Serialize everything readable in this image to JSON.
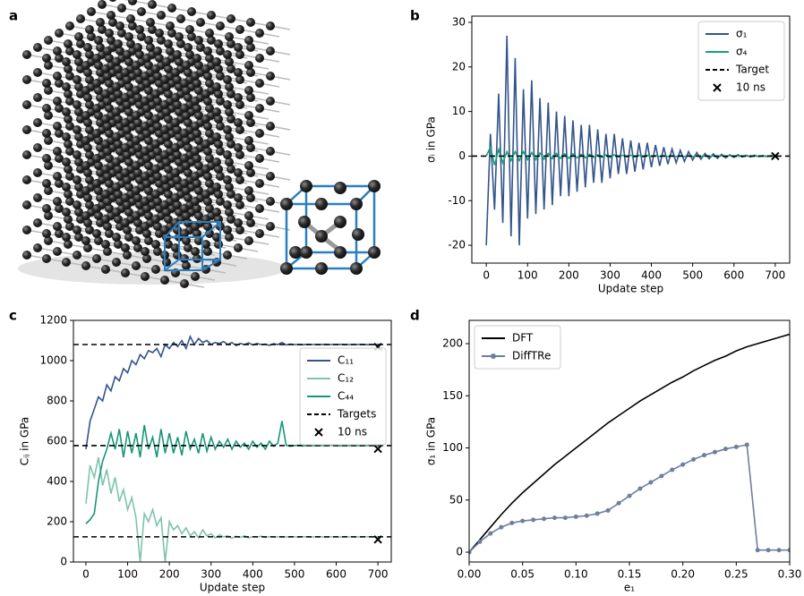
{
  "figure_a": {
    "label": "a"
  },
  "chart_data": [
    {
      "type": "line",
      "panel": "b",
      "xlabel": "Update step",
      "ylabel": "σᵢ in GPa",
      "xlim": [
        -35,
        735
      ],
      "ylim": [
        -24,
        31.4
      ],
      "xticks": [
        0,
        100,
        200,
        300,
        400,
        500,
        600,
        700
      ],
      "yticks": [
        -20,
        -10,
        0,
        10,
        20,
        30
      ],
      "legend": "upper right",
      "x": [
        0,
        10,
        20,
        30,
        40,
        50,
        60,
        70,
        80,
        90,
        100,
        110,
        120,
        130,
        140,
        150,
        160,
        170,
        180,
        190,
        200,
        210,
        220,
        230,
        240,
        250,
        260,
        270,
        280,
        290,
        300,
        310,
        320,
        330,
        340,
        350,
        360,
        370,
        380,
        390,
        400,
        410,
        420,
        430,
        440,
        450,
        460,
        470,
        480,
        490,
        500,
        510,
        520,
        530,
        540,
        550,
        560,
        570,
        580,
        590,
        600,
        610,
        620,
        630,
        640,
        650,
        660,
        670,
        680,
        690,
        700
      ],
      "series": [
        {
          "name": "σ₁",
          "color": "#34548b",
          "values": [
            -20,
            5,
            -12,
            14,
            -15,
            27,
            -18,
            22,
            -20,
            15,
            -14,
            17,
            -13,
            13,
            -12,
            12,
            -11,
            10,
            -9,
            9,
            -9,
            8,
            -8,
            7,
            -7,
            7,
            -6,
            6,
            -6,
            5,
            -5,
            5,
            -4,
            4,
            -4,
            3.5,
            -3.5,
            3,
            -3,
            3,
            -2.5,
            2.5,
            -2.2,
            2,
            -1.8,
            1.6,
            -1.5,
            1.3,
            -1.2,
            1,
            -0.9,
            0.8,
            -0.7,
            0.6,
            -0.6,
            0.5,
            -0.5,
            0.4,
            -0.4,
            0.3,
            -0.3,
            0.3,
            -0.2,
            0.2,
            -0.2,
            0.2,
            -0.1,
            0.1,
            -0.1,
            0.1,
            0
          ]
        },
        {
          "name": "σ₄",
          "color": "#1b9e7b",
          "values": [
            0,
            2,
            -2,
            1.5,
            -1.5,
            1,
            -1,
            1,
            -1,
            1,
            -0.8,
            0.8,
            -0.8,
            0.7,
            -0.7,
            0.6,
            -0.6,
            0.6,
            -0.5,
            0.5,
            -0.5,
            0.5,
            -0.4,
            0.4,
            -0.4,
            0.4,
            -0.3,
            0.3,
            -0.3,
            0.3,
            -0.3,
            0.3,
            -0.2,
            0.2,
            -0.2,
            0.2,
            -0.2,
            0.2,
            -0.2,
            0.2,
            -0.1,
            0.1,
            -0.1,
            0.1,
            -0.1,
            0.1,
            -0.1,
            0.1,
            -0.1,
            0.1,
            -0.1,
            0.1,
            -0.1,
            0.1,
            -0.1,
            0.1,
            -0.1,
            0.1,
            -0.1,
            0.1,
            0,
            0,
            0,
            0,
            0,
            0,
            0,
            0,
            0,
            0,
            0
          ]
        }
      ],
      "targets": {
        "name": "Target",
        "values": [
          0
        ]
      },
      "markers": {
        "name": "10 ns",
        "x": 700,
        "values": [
          0
        ]
      }
    },
    {
      "type": "line",
      "panel": "c",
      "xlabel": "Update step",
      "ylabel": "Cᵢⱼ in GPa",
      "xlim": [
        -30,
        732
      ],
      "ylim": [
        0,
        1200
      ],
      "xticks": [
        0,
        100,
        200,
        300,
        400,
        500,
        600,
        700
      ],
      "yticks": [
        0,
        200,
        400,
        600,
        800,
        1000,
        1200
      ],
      "legend": "center right",
      "x": [
        0,
        10,
        20,
        30,
        40,
        50,
        60,
        70,
        80,
        90,
        100,
        110,
        120,
        130,
        140,
        150,
        160,
        170,
        180,
        190,
        200,
        210,
        220,
        230,
        240,
        250,
        260,
        270,
        280,
        290,
        300,
        310,
        320,
        330,
        340,
        350,
        360,
        370,
        380,
        390,
        400,
        410,
        420,
        430,
        440,
        450,
        460,
        470,
        480,
        490,
        500,
        510,
        520,
        530,
        540,
        550,
        560,
        570,
        580,
        590,
        600,
        610,
        620,
        630,
        640,
        650,
        660,
        670,
        680,
        690,
        700
      ],
      "series": [
        {
          "name": "C₁₁",
          "color": "#34548b",
          "values": [
            560,
            700,
            760,
            820,
            800,
            880,
            850,
            920,
            900,
            960,
            940,
            1000,
            980,
            1030,
            1010,
            1050,
            1040,
            1060,
            1020,
            1080,
            1060,
            1090,
            1070,
            1100,
            1060,
            1120,
            1080,
            1110,
            1090,
            1100,
            1080,
            1090,
            1085,
            1095,
            1080,
            1090,
            1075,
            1085,
            1080,
            1088,
            1078,
            1085,
            1080,
            1082,
            1076,
            1084,
            1080,
            1090,
            1078,
            1082,
            1080,
            1080,
            1079,
            1081,
            1080,
            1080,
            1079,
            1081,
            1080,
            1080,
            1080,
            1081,
            1079,
            1080,
            1080,
            1080,
            1081,
            1079,
            1080,
            1080,
            1080
          ]
        },
        {
          "name": "C₁₂",
          "color": "#7fc3af",
          "values": [
            290,
            480,
            420,
            520,
            380,
            460,
            340,
            420,
            300,
            360,
            260,
            320,
            220,
            0,
            240,
            200,
            260,
            180,
            220,
            0,
            200,
            160,
            180,
            140,
            170,
            130,
            150,
            120,
            160,
            130,
            140,
            120,
            135,
            125,
            130,
            118,
            128,
            122,
            130,
            120,
            126,
            124,
            128,
            122,
            126,
            124,
            125,
            125,
            124,
            126,
            125,
            124,
            126,
            125,
            124,
            125,
            126,
            124,
            125,
            125,
            125,
            124,
            126,
            125,
            125,
            124,
            125,
            126,
            125,
            125,
            125
          ]
        },
        {
          "name": "C₄₄",
          "color": "#17967a",
          "values": [
            190,
            210,
            240,
            400,
            500,
            560,
            640,
            560,
            660,
            520,
            650,
            540,
            640,
            520,
            680,
            560,
            620,
            520,
            660,
            540,
            640,
            540,
            620,
            530,
            650,
            560,
            610,
            540,
            640,
            550,
            620,
            560,
            600,
            570,
            610,
            560,
            600,
            570,
            590,
            560,
            600,
            570,
            590,
            560,
            600,
            575,
            590,
            700,
            580,
            575,
            578,
            580,
            576,
            579,
            578,
            577,
            579,
            578,
            578,
            580,
            578,
            577,
            579,
            578,
            578,
            578,
            577,
            579,
            578,
            578,
            578
          ]
        }
      ],
      "targets": {
        "name": "Targets",
        "values": [
          1080,
          578,
          125
        ]
      },
      "markers": {
        "name": "10 ns",
        "x": 700,
        "values": [
          1068,
          562,
          112
        ]
      }
    },
    {
      "type": "line",
      "panel": "d",
      "xlabel": "e₁",
      "ylabel": "σ₁ in GPa",
      "xlim": [
        0,
        0.3
      ],
      "ylim": [
        -9.4,
        222.3
      ],
      "xticks": [
        {
          "value": 0,
          "label": "0.00"
        },
        {
          "value": 0.05,
          "label": "0.05"
        },
        {
          "value": 0.1,
          "label": "0.10"
        },
        {
          "value": 0.15,
          "label": "0.15"
        },
        {
          "value": 0.2,
          "label": "0.20"
        },
        {
          "value": 0.25,
          "label": "0.25"
        },
        {
          "value": 0.3,
          "label": "0.30"
        }
      ],
      "yticks": [
        0,
        50,
        100,
        150,
        200
      ],
      "legend": "upper left",
      "x": [
        0,
        0.01,
        0.02,
        0.03,
        0.04,
        0.05,
        0.06,
        0.07,
        0.08,
        0.09,
        0.1,
        0.11,
        0.12,
        0.13,
        0.14,
        0.15,
        0.16,
        0.17,
        0.18,
        0.19,
        0.2,
        0.21,
        0.22,
        0.23,
        0.24,
        0.25,
        0.26,
        0.27,
        0.28,
        0.29,
        0.3
      ],
      "series": [
        {
          "name": "DFT",
          "color": "#000000",
          "values": [
            0,
            12,
            24,
            36,
            47,
            57,
            66,
            75,
            84,
            92,
            100,
            108,
            116,
            124,
            131,
            138,
            145,
            151,
            157,
            163,
            168,
            174,
            179,
            184,
            188,
            193,
            197,
            200,
            203,
            206,
            209
          ]
        },
        {
          "name": "DiffTRe",
          "color": "#6e7f9e",
          "marker": "o",
          "values": [
            0,
            10,
            18,
            24,
            28,
            30,
            31,
            32,
            33,
            33,
            34,
            35,
            37,
            40,
            47,
            54,
            61,
            67,
            73,
            79,
            84,
            89,
            93,
            96,
            99,
            101,
            103,
            2,
            2,
            2,
            2
          ]
        }
      ]
    }
  ]
}
